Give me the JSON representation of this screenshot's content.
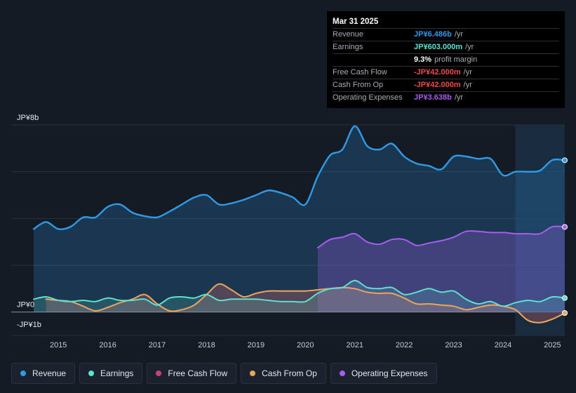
{
  "tooltip": {
    "date": "Mar 31 2025",
    "rows": [
      {
        "label": "Revenue",
        "value": "JP¥6.486b",
        "unit": "/yr",
        "color": "#2e9bea"
      },
      {
        "label": "Earnings",
        "value": "JP¥603.000m",
        "unit": "/yr",
        "color": "#5ce2cf"
      },
      {
        "label": "",
        "value": "9.3%",
        "unit": "profit margin",
        "color": "#ffffff"
      },
      {
        "label": "Free Cash Flow",
        "value": "-JP¥42.000m",
        "unit": "/yr",
        "color": "#ef4a4a"
      },
      {
        "label": "Cash From Op",
        "value": "-JP¥42.000m",
        "unit": "/yr",
        "color": "#ef4a4a"
      },
      {
        "label": "Operating Expenses",
        "value": "JP¥3.638b",
        "unit": "/yr",
        "color": "#a95cf0"
      }
    ]
  },
  "legend": [
    {
      "label": "Revenue",
      "color": "#2e9bea"
    },
    {
      "label": "Earnings",
      "color": "#5ce2cf"
    },
    {
      "label": "Free Cash Flow",
      "color": "#c2427a"
    },
    {
      "label": "Cash From Op",
      "color": "#e7a65a"
    },
    {
      "label": "Operating Expenses",
      "color": "#a95cf0"
    }
  ],
  "chart_data": {
    "type": "area",
    "title": "",
    "y_unit": "JP¥b",
    "ylim": [
      -1,
      8
    ],
    "y_tick_labels": [
      {
        "value": 8,
        "label": "JP¥8b"
      },
      {
        "value": 0,
        "label": "JP¥0"
      },
      {
        "value": -1,
        "label": "-JP¥1b"
      }
    ],
    "x_ticks": [
      2015,
      2016,
      2017,
      2018,
      2019,
      2020,
      2021,
      2022,
      2023,
      2024,
      2025
    ],
    "xlim": [
      2014.5,
      2025.25
    ],
    "highlight_from": 2024.25,
    "series": [
      {
        "name": "Revenue",
        "color": "#2e9bea",
        "points": [
          [
            2014.5,
            3.55
          ],
          [
            2014.75,
            3.85
          ],
          [
            2015.0,
            3.55
          ],
          [
            2015.25,
            3.65
          ],
          [
            2015.5,
            4.05
          ],
          [
            2015.75,
            4.05
          ],
          [
            2016.0,
            4.5
          ],
          [
            2016.25,
            4.6
          ],
          [
            2016.5,
            4.25
          ],
          [
            2016.75,
            4.1
          ],
          [
            2017.0,
            4.05
          ],
          [
            2017.25,
            4.3
          ],
          [
            2017.5,
            4.6
          ],
          [
            2017.75,
            4.9
          ],
          [
            2018.0,
            5.0
          ],
          [
            2018.25,
            4.6
          ],
          [
            2018.5,
            4.65
          ],
          [
            2018.75,
            4.8
          ],
          [
            2019.0,
            5.0
          ],
          [
            2019.25,
            5.2
          ],
          [
            2019.5,
            5.1
          ],
          [
            2019.75,
            4.9
          ],
          [
            2020.0,
            4.6
          ],
          [
            2020.25,
            5.8
          ],
          [
            2020.5,
            6.7
          ],
          [
            2020.75,
            6.95
          ],
          [
            2021.0,
            7.95
          ],
          [
            2021.25,
            7.1
          ],
          [
            2021.5,
            6.95
          ],
          [
            2021.75,
            7.2
          ],
          [
            2022.0,
            6.65
          ],
          [
            2022.25,
            6.35
          ],
          [
            2022.5,
            6.25
          ],
          [
            2022.75,
            6.1
          ],
          [
            2023.0,
            6.65
          ],
          [
            2023.25,
            6.65
          ],
          [
            2023.5,
            6.55
          ],
          [
            2023.75,
            6.55
          ],
          [
            2024.0,
            5.85
          ],
          [
            2024.25,
            6.0
          ],
          [
            2024.5,
            6.0
          ],
          [
            2024.75,
            6.05
          ],
          [
            2025.0,
            6.5
          ],
          [
            2025.25,
            6.49
          ]
        ]
      },
      {
        "name": "Earnings",
        "color": "#5ce2cf",
        "points": [
          [
            2014.5,
            0.55
          ],
          [
            2014.75,
            0.65
          ],
          [
            2015.0,
            0.5
          ],
          [
            2015.25,
            0.45
          ],
          [
            2015.5,
            0.5
          ],
          [
            2015.75,
            0.45
          ],
          [
            2016.0,
            0.6
          ],
          [
            2016.25,
            0.5
          ],
          [
            2016.5,
            0.5
          ],
          [
            2016.75,
            0.55
          ],
          [
            2017.0,
            0.3
          ],
          [
            2017.25,
            0.6
          ],
          [
            2017.5,
            0.65
          ],
          [
            2017.75,
            0.6
          ],
          [
            2018.0,
            0.75
          ],
          [
            2018.25,
            0.5
          ],
          [
            2018.5,
            0.55
          ],
          [
            2018.75,
            0.55
          ],
          [
            2019.0,
            0.55
          ],
          [
            2019.25,
            0.5
          ],
          [
            2019.5,
            0.45
          ],
          [
            2019.75,
            0.45
          ],
          [
            2020.0,
            0.45
          ],
          [
            2020.25,
            0.8
          ],
          [
            2020.5,
            1.0
          ],
          [
            2020.75,
            1.05
          ],
          [
            2021.0,
            1.35
          ],
          [
            2021.25,
            1.05
          ],
          [
            2021.5,
            1.0
          ],
          [
            2021.75,
            1.05
          ],
          [
            2022.0,
            0.75
          ],
          [
            2022.25,
            0.85
          ],
          [
            2022.5,
            1.0
          ],
          [
            2022.75,
            0.85
          ],
          [
            2023.0,
            0.9
          ],
          [
            2023.25,
            0.55
          ],
          [
            2023.5,
            0.35
          ],
          [
            2023.75,
            0.45
          ],
          [
            2024.0,
            0.25
          ],
          [
            2024.25,
            0.4
          ],
          [
            2024.5,
            0.5
          ],
          [
            2024.75,
            0.45
          ],
          [
            2025.0,
            0.65
          ],
          [
            2025.25,
            0.6
          ]
        ]
      },
      {
        "name": "Free Cash Flow",
        "color": "#c2427a",
        "points": [
          [
            2014.75,
            0.55
          ],
          [
            2015.0,
            0.5
          ],
          [
            2015.25,
            0.45
          ],
          [
            2015.5,
            0.25
          ],
          [
            2015.75,
            0.05
          ],
          [
            2016.0,
            0.2
          ],
          [
            2016.25,
            0.4
          ],
          [
            2016.5,
            0.55
          ],
          [
            2016.75,
            0.75
          ],
          [
            2017.0,
            0.35
          ],
          [
            2017.25,
            0.05
          ],
          [
            2017.5,
            0.1
          ],
          [
            2017.75,
            0.3
          ],
          [
            2018.0,
            0.75
          ],
          [
            2018.25,
            1.2
          ],
          [
            2018.5,
            0.95
          ],
          [
            2018.75,
            0.65
          ],
          [
            2019.0,
            0.8
          ],
          [
            2019.25,
            0.9
          ],
          [
            2019.5,
            0.9
          ],
          [
            2019.75,
            0.9
          ],
          [
            2020.0,
            0.9
          ],
          [
            2020.25,
            0.95
          ],
          [
            2020.5,
            1.0
          ],
          [
            2020.75,
            1.05
          ],
          [
            2021.0,
            1.0
          ],
          [
            2021.25,
            0.85
          ],
          [
            2021.5,
            0.8
          ],
          [
            2021.75,
            0.8
          ],
          [
            2022.0,
            0.6
          ],
          [
            2022.25,
            0.35
          ],
          [
            2022.5,
            0.35
          ],
          [
            2022.75,
            0.3
          ],
          [
            2023.0,
            0.25
          ],
          [
            2023.25,
            0.1
          ],
          [
            2023.5,
            0.2
          ],
          [
            2023.75,
            0.3
          ],
          [
            2024.0,
            0.25
          ],
          [
            2024.25,
            0.1
          ],
          [
            2024.5,
            -0.35
          ],
          [
            2024.75,
            -0.45
          ],
          [
            2025.0,
            -0.3
          ],
          [
            2025.25,
            -0.04
          ]
        ]
      },
      {
        "name": "Cash From Op",
        "color": "#e7a65a",
        "points": [
          [
            2014.75,
            0.55
          ],
          [
            2015.0,
            0.5
          ],
          [
            2015.25,
            0.45
          ],
          [
            2015.5,
            0.25
          ],
          [
            2015.75,
            0.05
          ],
          [
            2016.0,
            0.2
          ],
          [
            2016.25,
            0.4
          ],
          [
            2016.5,
            0.55
          ],
          [
            2016.75,
            0.75
          ],
          [
            2017.0,
            0.35
          ],
          [
            2017.25,
            0.05
          ],
          [
            2017.5,
            0.1
          ],
          [
            2017.75,
            0.3
          ],
          [
            2018.0,
            0.75
          ],
          [
            2018.25,
            1.2
          ],
          [
            2018.5,
            0.95
          ],
          [
            2018.75,
            0.65
          ],
          [
            2019.0,
            0.8
          ],
          [
            2019.25,
            0.9
          ],
          [
            2019.5,
            0.9
          ],
          [
            2019.75,
            0.9
          ],
          [
            2020.0,
            0.9
          ],
          [
            2020.25,
            0.95
          ],
          [
            2020.5,
            1.0
          ],
          [
            2020.75,
            1.05
          ],
          [
            2021.0,
            1.0
          ],
          [
            2021.25,
            0.85
          ],
          [
            2021.5,
            0.8
          ],
          [
            2021.75,
            0.8
          ],
          [
            2022.0,
            0.6
          ],
          [
            2022.25,
            0.35
          ],
          [
            2022.5,
            0.35
          ],
          [
            2022.75,
            0.3
          ],
          [
            2023.0,
            0.25
          ],
          [
            2023.25,
            0.1
          ],
          [
            2023.5,
            0.2
          ],
          [
            2023.75,
            0.3
          ],
          [
            2024.0,
            0.25
          ],
          [
            2024.25,
            0.1
          ],
          [
            2024.5,
            -0.35
          ],
          [
            2024.75,
            -0.45
          ],
          [
            2025.0,
            -0.3
          ],
          [
            2025.25,
            -0.04
          ]
        ]
      },
      {
        "name": "Operating Expenses",
        "color": "#a95cf0",
        "points": [
          [
            2020.25,
            2.75
          ],
          [
            2020.5,
            3.1
          ],
          [
            2020.75,
            3.2
          ],
          [
            2021.0,
            3.35
          ],
          [
            2021.25,
            3.0
          ],
          [
            2021.5,
            2.9
          ],
          [
            2021.75,
            3.1
          ],
          [
            2022.0,
            3.1
          ],
          [
            2022.25,
            2.85
          ],
          [
            2022.5,
            2.95
          ],
          [
            2022.75,
            3.05
          ],
          [
            2023.0,
            3.2
          ],
          [
            2023.25,
            3.45
          ],
          [
            2023.5,
            3.45
          ],
          [
            2023.75,
            3.4
          ],
          [
            2024.0,
            3.4
          ],
          [
            2024.25,
            3.35
          ],
          [
            2024.5,
            3.35
          ],
          [
            2024.75,
            3.35
          ],
          [
            2025.0,
            3.65
          ],
          [
            2025.25,
            3.64
          ]
        ]
      }
    ]
  }
}
